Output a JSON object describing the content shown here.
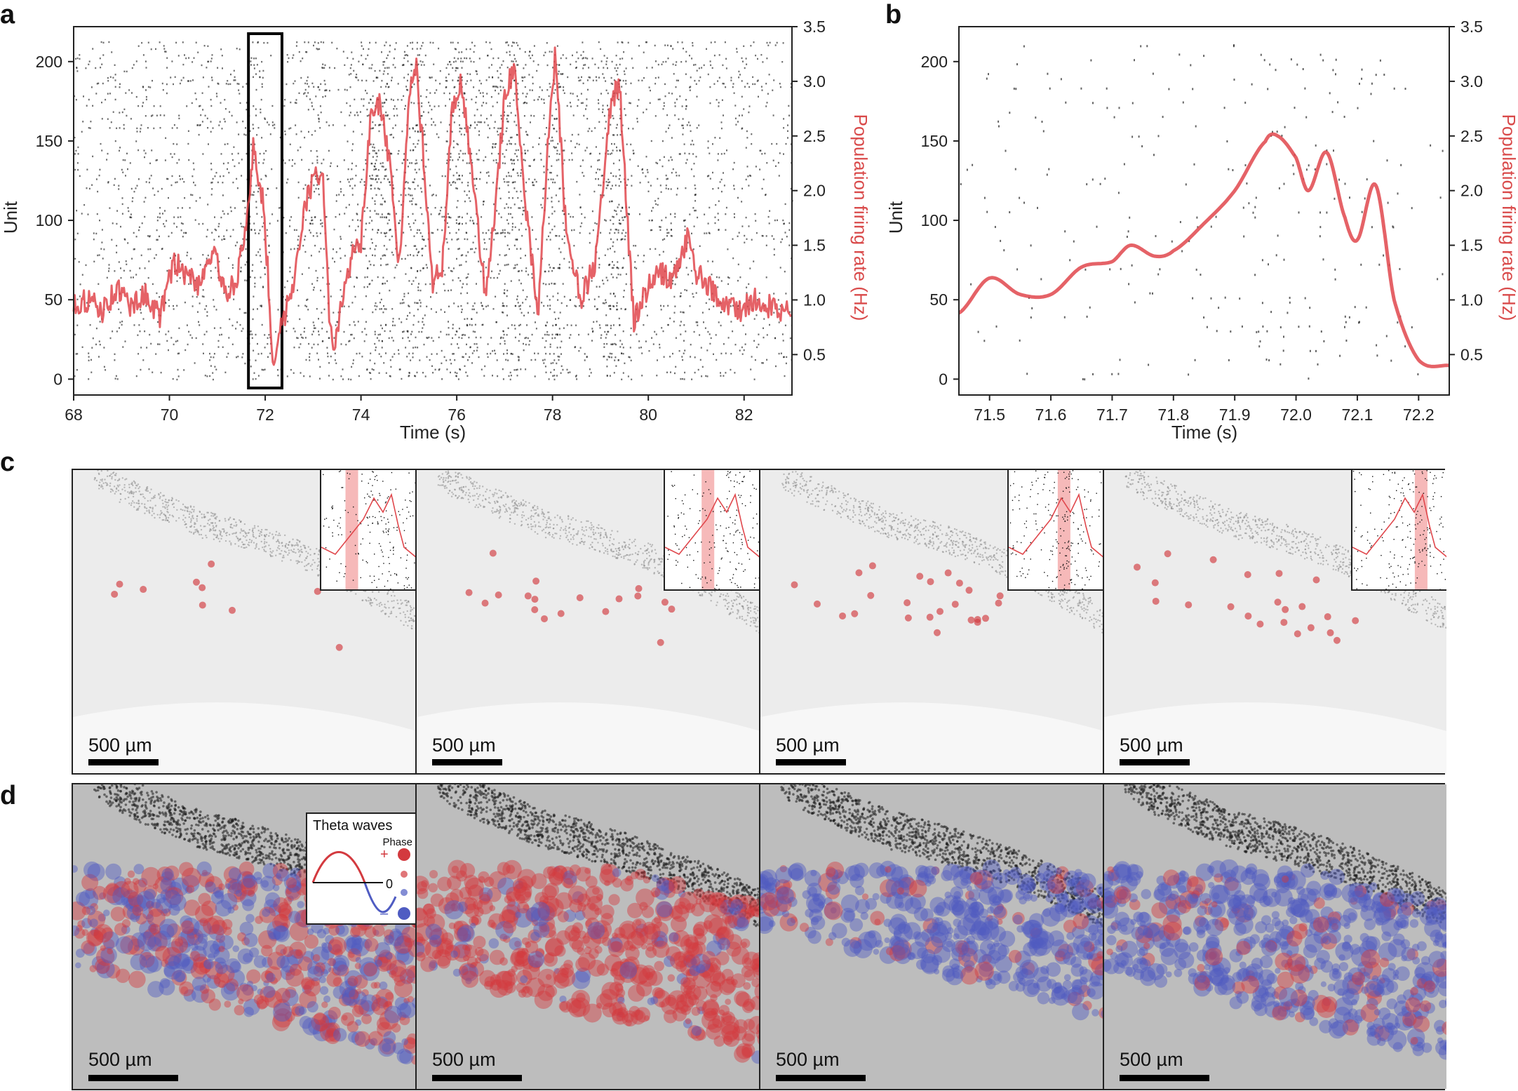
{
  "figure": {
    "panels": [
      "a",
      "b",
      "c",
      "d"
    ]
  },
  "colors": {
    "rate_line": "#e0474c",
    "raster": "#222222",
    "phase_positive": "#d33a3f",
    "phase_negative": "#4f5cc2",
    "inset_highlight": "#f4a7a7"
  },
  "chart_data": [
    {
      "panel": "a",
      "type": "line",
      "title": "",
      "xlabel": "Time (s)",
      "ylabel": "Unit",
      "ylabel_right": "Population firing rate (Hz)",
      "xlim": [
        68,
        83
      ],
      "ylim": [
        -10,
        222
      ],
      "ylim_right": [
        0.13,
        3.5
      ],
      "xticks": [
        "68",
        "70",
        "72",
        "74",
        "76",
        "78",
        "80",
        "82"
      ],
      "yticks": [
        "0",
        "50",
        "100",
        "150",
        "200"
      ],
      "yticks_right": [
        "0.5",
        "1.0",
        "1.5",
        "2.0",
        "2.5",
        "3.0",
        "3.5"
      ],
      "highlight_box": [
        71.65,
        72.35
      ],
      "series": [
        {
          "name": "Population firing rate",
          "x": [
            68.0,
            68.3,
            68.6,
            68.9,
            69.2,
            69.5,
            69.8,
            70.1,
            70.3,
            70.6,
            70.9,
            71.2,
            71.4,
            71.6,
            71.75,
            71.95,
            72.05,
            72.15,
            72.25,
            72.4,
            72.6,
            72.8,
            73.0,
            73.2,
            73.35,
            73.45,
            73.6,
            73.8,
            74.0,
            74.2,
            74.4,
            74.6,
            74.8,
            75.0,
            75.15,
            75.3,
            75.5,
            75.7,
            75.9,
            76.1,
            76.3,
            76.6,
            76.8,
            77.0,
            77.2,
            77.4,
            77.7,
            77.9,
            78.05,
            78.15,
            78.3,
            78.6,
            78.9,
            79.2,
            79.4,
            79.55,
            79.7,
            79.9,
            80.2,
            80.5,
            80.7,
            80.85,
            81.0,
            81.3,
            81.6,
            81.9,
            82.2,
            82.5,
            82.8
          ],
          "values": [
            0.95,
            1.0,
            0.9,
            1.1,
            0.95,
            1.05,
            0.85,
            1.35,
            1.25,
            1.15,
            1.45,
            1.05,
            1.2,
            1.6,
            2.4,
            1.9,
            1.3,
            0.45,
            0.6,
            0.85,
            1.2,
            1.8,
            2.1,
            2.2,
            0.7,
            0.55,
            0.95,
            1.4,
            1.5,
            2.65,
            2.8,
            2.2,
            1.3,
            2.9,
            3.15,
            2.35,
            1.15,
            1.3,
            2.75,
            3.0,
            2.2,
            1.05,
            1.8,
            2.9,
            3.1,
            2.0,
            0.9,
            2.4,
            3.2,
            2.6,
            1.5,
            1.0,
            1.35,
            2.75,
            3.0,
            1.8,
            0.8,
            1.05,
            1.25,
            1.2,
            1.4,
            1.6,
            1.25,
            1.1,
            0.95,
            0.9,
            1.0,
            0.95,
            0.9
          ]
        }
      ]
    },
    {
      "panel": "b",
      "type": "line",
      "title": "",
      "xlabel": "Time (s)",
      "ylabel": "Unit",
      "ylabel_right": "Population firing rate (Hz)",
      "xlim": [
        71.45,
        72.25
      ],
      "ylim": [
        -10,
        222
      ],
      "ylim_right": [
        0.13,
        3.5
      ],
      "xticks": [
        "71.5",
        "71.6",
        "71.7",
        "71.8",
        "71.9",
        "72.0",
        "72.1",
        "72.2"
      ],
      "yticks": [
        "0",
        "50",
        "100",
        "150",
        "200"
      ],
      "yticks_right": [
        "0.5",
        "1.0",
        "1.5",
        "2.0",
        "2.5",
        "3.0",
        "3.5"
      ],
      "series": [
        {
          "name": "Population firing rate",
          "x": [
            71.45,
            71.5,
            71.55,
            71.6,
            71.65,
            71.7,
            71.73,
            71.77,
            71.8,
            71.85,
            71.9,
            71.95,
            71.97,
            72.0,
            72.02,
            72.05,
            72.08,
            72.1,
            72.13,
            72.16,
            72.2,
            72.25
          ],
          "values": [
            0.88,
            1.2,
            1.05,
            1.05,
            1.3,
            1.35,
            1.5,
            1.4,
            1.45,
            1.7,
            2.0,
            2.45,
            2.5,
            2.3,
            2.0,
            2.35,
            1.75,
            1.55,
            2.05,
            1.0,
            0.45,
            0.4
          ]
        }
      ]
    }
  ],
  "panel_c": {
    "scale_label": "500 µm",
    "tiles": [
      {
        "highlight_center": 0.32
      },
      {
        "highlight_center": 0.45
      },
      {
        "highlight_center": 0.58
      },
      {
        "highlight_center": 0.72
      }
    ]
  },
  "panel_d": {
    "scale_label": "500 µm",
    "legend": {
      "title": "Theta waves",
      "phase_label": "Phase",
      "plus": "+",
      "zero": "0",
      "minus": "–"
    }
  }
}
